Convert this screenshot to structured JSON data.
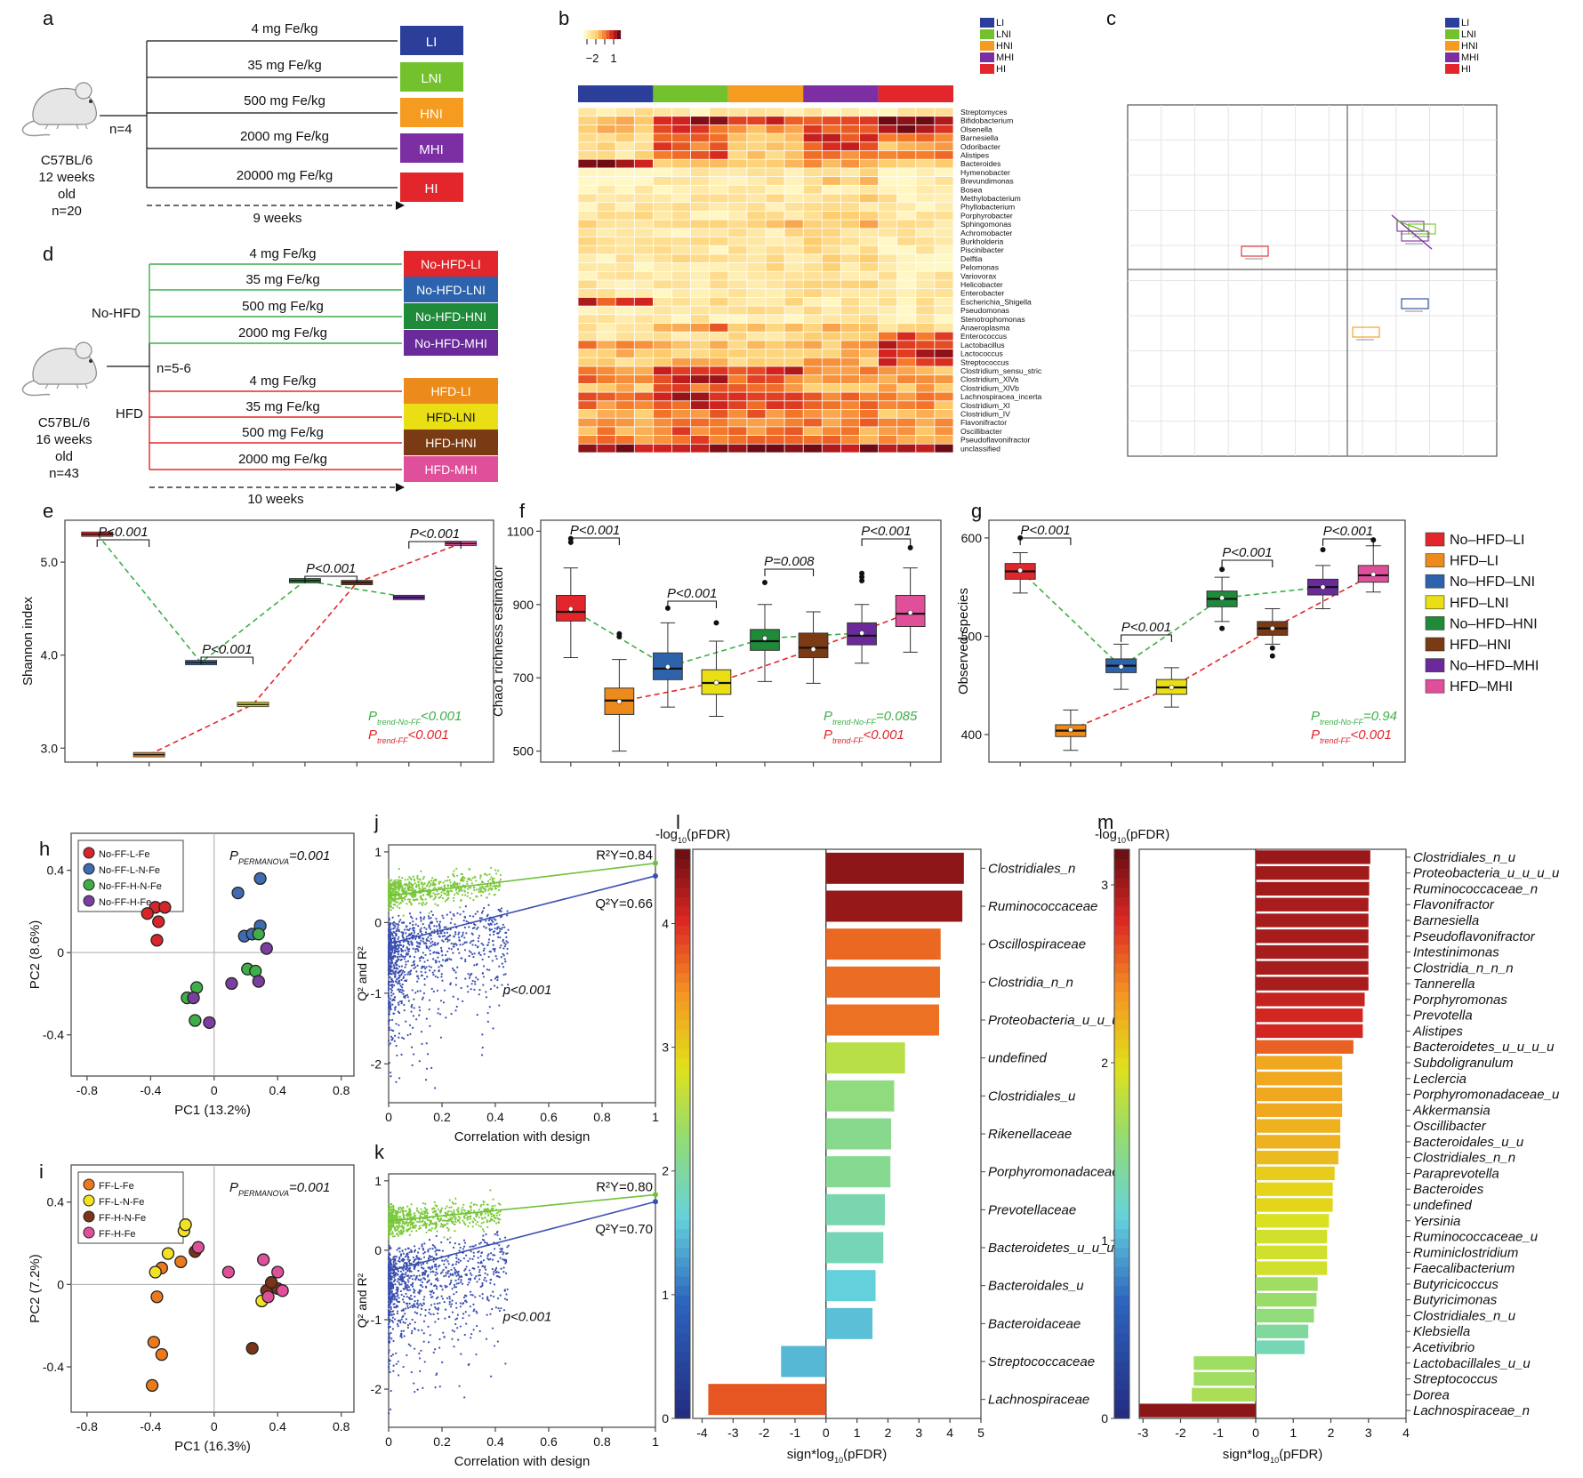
{
  "panel_a": {
    "letter": "a",
    "mouse": [
      "C57BL/6",
      "12 weeks",
      "old",
      "n=20"
    ],
    "n_per_group": "n=4",
    "doses": [
      "4 mg Fe/kg",
      "35 mg Fe/kg",
      "500 mg Fe/kg",
      "2000 mg Fe/kg",
      "20000 mg Fe/kg"
    ],
    "groups": [
      "LI",
      "LNI",
      "HNI",
      "MHI",
      "HI"
    ],
    "group_colors": [
      "#2b3f9a",
      "#73c22d",
      "#f49b20",
      "#7b2fa3",
      "#e2262b"
    ],
    "duration": "9 weeks"
  },
  "panel_b": {
    "letter": "b",
    "scale_labels": [
      "−2",
      "1"
    ],
    "legend": [
      "LI",
      "LNI",
      "HNI",
      "MHI",
      "HI"
    ],
    "legend_colors": [
      "#2b3f9a",
      "#73c22d",
      "#f49b20",
      "#7b2fa3",
      "#e2262b"
    ],
    "taxa": [
      "Streptomyces",
      "Bifidobacterium",
      "Olsenella",
      "Barnesiella",
      "Odoribacter",
      "Alistipes",
      "Bacteroides",
      "Hymenobacter",
      "Brevundimonas",
      "Bosea",
      "Methylobacterium",
      "Phyllobacterium",
      "Porphyrobacter",
      "Sphingomonas",
      "Achromobacter",
      "Burkholderia",
      "Piscinibacter",
      "Delftia",
      "Pelomonas",
      "Variovorax",
      "Helicobacter",
      "Enterobacter",
      "Escherichia_Shigella",
      "Pseudomonas",
      "Stenotrophomonas",
      "Anaeroplasma",
      "Enterococcus",
      "Lactobacillus",
      "Lactococcus",
      "Streptococcus",
      "Clostridium_sensu_stric",
      "Clostridium_XlVa",
      "Clostridium_XlVb",
      "Lachnospiracea_incerta",
      "Clostridium_XI",
      "Clostridium_IV",
      "Flavonifractor",
      "Oscillibacter",
      "Pseudoflavonifractor",
      "unclassified"
    ]
  },
  "panel_c": {
    "letter": "c",
    "legend": [
      "LI",
      "LNI",
      "HNI",
      "MHI",
      "HI"
    ],
    "legend_colors": [
      "#2b3f9a",
      "#73c22d",
      "#f49b20",
      "#7b2fa3",
      "#e2262b"
    ]
  },
  "panel_d": {
    "letter": "d",
    "mouse": [
      "C57BL/6",
      "16 weeks",
      "old",
      "n=43"
    ],
    "n_per_group": "n=5-6",
    "branch_top": "No-HFD",
    "branch_bottom": "HFD",
    "doses": [
      "4 mg Fe/kg",
      "35 mg Fe/kg",
      "500 mg Fe/kg",
      "2000 mg Fe/kg",
      "4 mg Fe/kg",
      "35 mg Fe/kg",
      "500 mg Fe/kg",
      "2000 mg Fe/kg"
    ],
    "groups": [
      "No-HFD-LI",
      "No-HFD-LNI",
      "No-HFD-HNI",
      "No-HFD-MHI",
      "HFD-LI",
      "HFD-LNI",
      "HFD-HNI",
      "HFD-MHI"
    ],
    "group_colors": [
      "#e2262b",
      "#2d63ad",
      "#1e8a3a",
      "#6a2a9a",
      "#ec8b1c",
      "#eadf14",
      "#7a3a14",
      "#e0509a"
    ],
    "duration": "10 weeks"
  },
  "legend_efg": {
    "items": [
      "No–HFD–LI",
      "HFD–LI",
      "No–HFD–LNI",
      "HFD–LNI",
      "No–HFD–HNI",
      "HFD–HNI",
      "No–HFD–MHI",
      "HFD–MHI"
    ],
    "colors": [
      "#e2262b",
      "#ec8b1c",
      "#2d63ad",
      "#eadf14",
      "#1e8a3a",
      "#7a3a14",
      "#6a2a9a",
      "#e0509a"
    ]
  },
  "chart_data": [
    {
      "panel": "e",
      "type": "box",
      "ylabel": "Shannon index",
      "yticks": [
        3.0,
        4.0,
        5.0
      ],
      "ylim": [
        2.85,
        5.45
      ],
      "medians": [
        5.3,
        2.93,
        3.92,
        3.47,
        4.8,
        4.78,
        4.62,
        5.2
      ],
      "pvalues": [
        "P<0.001",
        "P<0.001",
        "P<0.001",
        "P<0.001"
      ],
      "trend_no_ff_prefix": "P",
      "trend_no_ff_sub": "trend-No-FF",
      "trend_no_ff_value": "<0.001",
      "trend_ff_prefix": "P",
      "trend_ff_sub": "trend-FF",
      "trend_ff_value": "<0.001"
    },
    {
      "panel": "f",
      "type": "box",
      "ylabel": "Chao1 richness estimator",
      "yticks": [
        500,
        700,
        900,
        1100
      ],
      "ylim": [
        470,
        1130
      ],
      "medians": [
        880,
        638,
        725,
        686,
        800,
        782,
        815,
        875
      ],
      "q1": [
        855,
        600,
        695,
        655,
        775,
        755,
        790,
        840
      ],
      "q3": [
        925,
        672,
        768,
        722,
        832,
        822,
        850,
        925
      ],
      "whisker_low": [
        755,
        500,
        620,
        595,
        690,
        685,
        740,
        770
      ],
      "whisker_high": [
        1000,
        750,
        850,
        800,
        900,
        880,
        900,
        1000
      ],
      "means": [
        888,
        635,
        730,
        687,
        808,
        778,
        822,
        878
      ],
      "outliers": [
        [
          1070,
          1080
        ],
        [
          820,
          812
        ],
        [
          890
        ],
        [
          850
        ],
        [
          960
        ],
        [],
        [
          985,
          975,
          965
        ],
        [
          1055
        ]
      ],
      "pvalues": [
        "P<0.001",
        "P<0.001",
        "P=0.008",
        "P<0.001"
      ],
      "trend_no_ff_prefix": "P",
      "trend_no_ff_sub": "trend-No-FF",
      "trend_no_ff_value": "=0.085",
      "trend_ff_prefix": "P",
      "trend_ff_sub": "trend-FF",
      "trend_ff_value": "<0.001"
    },
    {
      "panel": "g",
      "type": "box",
      "ylabel": "Observed species",
      "yticks": [
        400,
        500,
        600
      ],
      "ylim": [
        372,
        618
      ],
      "medians": [
        566,
        404,
        470,
        448,
        538,
        508,
        550,
        562
      ],
      "q1": [
        558,
        398,
        463,
        441,
        530,
        501,
        542,
        555
      ],
      "q3": [
        574,
        410,
        477,
        456,
        546,
        515,
        558,
        572
      ],
      "whisker_low": [
        544,
        384,
        446,
        428,
        515,
        492,
        528,
        545
      ],
      "whisker_high": [
        585,
        425,
        492,
        468,
        560,
        528,
        572,
        592
      ],
      "means": [
        567,
        405,
        469,
        448,
        539,
        508,
        550,
        563
      ],
      "outliers": [
        [
          600
        ],
        [],
        [],
        [],
        [
          568,
          508
        ],
        [
          488,
          480
        ],
        [
          588
        ],
        [
          598
        ]
      ],
      "pvalues": [
        "P<0.001",
        "P<0.001",
        "P<0.001",
        "P<0.001"
      ],
      "trend_no_ff_prefix": "P",
      "trend_no_ff_sub": "trend-No-FF",
      "trend_no_ff_value": "=0.94",
      "trend_ff_prefix": "P",
      "trend_ff_sub": "trend-FF",
      "trend_ff_value": "<0.001"
    },
    {
      "panel": "h",
      "type": "scatter",
      "xlabel": "PC1 (13.2%)",
      "ylabel": "PC2 (8.6%)",
      "xticks": [
        -0.8,
        -0.4,
        0,
        0.4,
        0.8
      ],
      "yticks": [
        -0.4,
        0,
        0.4
      ],
      "xlim": [
        -0.9,
        0.88
      ],
      "ylim": [
        -0.6,
        0.58
      ],
      "permanova_prefix": "P",
      "permanova_sub": "PERMANOVA",
      "permanova_value": "=0.001",
      "series": [
        {
          "name": "No-FF-L-Fe",
          "color": "#d7262b",
          "points": [
            [
              -0.37,
              0.22
            ],
            [
              -0.31,
              0.22
            ],
            [
              -0.42,
              0.19
            ],
            [
              -0.35,
              0.15
            ],
            [
              -0.36,
              0.06
            ]
          ]
        },
        {
          "name": "No-FF-L-N-Fe",
          "color": "#3f6bb0",
          "points": [
            [
              0.15,
              0.29
            ],
            [
              0.29,
              0.36
            ],
            [
              0.19,
              0.08
            ],
            [
              0.29,
              0.13
            ],
            [
              0.24,
              0.09
            ]
          ]
        },
        {
          "name": "No-FF-H-N-Fe",
          "color": "#3fae49",
          "points": [
            [
              -0.11,
              -0.17
            ],
            [
              -0.17,
              -0.22
            ],
            [
              0.21,
              -0.08
            ],
            [
              0.28,
              0.09
            ],
            [
              0.26,
              -0.09
            ],
            [
              -0.12,
              -0.33
            ]
          ]
        },
        {
          "name": "No-FF-H-Fe",
          "color": "#7a3ea0",
          "points": [
            [
              -0.03,
              -0.34
            ],
            [
              0.33,
              0.02
            ],
            [
              0.28,
              -0.14
            ],
            [
              0.11,
              -0.15
            ],
            [
              -0.13,
              -0.22
            ]
          ]
        }
      ]
    },
    {
      "panel": "i",
      "type": "scatter",
      "xlabel": "PC1 (16.3%)",
      "ylabel": "PC2 (7.2%)",
      "xticks": [
        -0.8,
        -0.4,
        0,
        0.4,
        0.8
      ],
      "yticks": [
        -0.4,
        0,
        0.4
      ],
      "xlim": [
        -0.9,
        0.88
      ],
      "ylim": [
        -0.62,
        0.58
      ],
      "permanova_prefix": "P",
      "permanova_sub": "PERMANOVA",
      "permanova_value": "=0.001",
      "series": [
        {
          "name": "FF-L-Fe",
          "color": "#ec7a1d",
          "points": [
            [
              -0.33,
              0.08
            ],
            [
              -0.21,
              0.11
            ],
            [
              -0.36,
              -0.06
            ],
            [
              -0.38,
              -0.28
            ],
            [
              -0.33,
              -0.34
            ],
            [
              -0.39,
              -0.49
            ]
          ]
        },
        {
          "name": "FF-L-N-Fe",
          "color": "#f3e222",
          "points": [
            [
              -0.29,
              0.15
            ],
            [
              -0.19,
              0.26
            ],
            [
              -0.18,
              0.29
            ],
            [
              -0.37,
              0.06
            ],
            [
              0.3,
              -0.08
            ]
          ]
        },
        {
          "name": "FF-H-N-Fe",
          "color": "#7a3417",
          "points": [
            [
              -0.12,
              0.16
            ],
            [
              0.33,
              -0.03
            ],
            [
              0.4,
              -0.02
            ],
            [
              0.24,
              -0.31
            ],
            [
              0.36,
              0.01
            ]
          ]
        },
        {
          "name": "FF-H-Fe",
          "color": "#e0509a",
          "points": [
            [
              -0.1,
              0.18
            ],
            [
              0.09,
              0.06
            ],
            [
              0.31,
              0.12
            ],
            [
              0.4,
              0.06
            ],
            [
              0.43,
              -0.03
            ],
            [
              0.34,
              -0.06
            ]
          ]
        }
      ]
    },
    {
      "panel": "j",
      "type": "scatter",
      "xlabel": "Correlation with design",
      "ylabel": "Q² and R²",
      "xticks": [
        0,
        0.2,
        0.4,
        0.6,
        0.8,
        1
      ],
      "yticks": [
        -2,
        -1,
        0,
        1
      ],
      "xlim": [
        0,
        1
      ],
      "ylim": [
        -2.55,
        1.1
      ],
      "r2_label": "R²Y=0.84",
      "q2_label": "Q²Y=0.66",
      "r2_line": [
        [
          0,
          0.38
        ],
        [
          1,
          0.84
        ]
      ],
      "q2_line": [
        [
          0,
          -0.3
        ],
        [
          1,
          0.66
        ]
      ],
      "p_label": "p<0.001"
    },
    {
      "panel": "k",
      "type": "scatter",
      "xlabel": "Correlation with design",
      "ylabel": "Q² and R²",
      "xticks": [
        0,
        0.2,
        0.4,
        0.6,
        0.8,
        1
      ],
      "yticks": [
        -2,
        -1,
        0,
        1
      ],
      "xlim": [
        0,
        1
      ],
      "ylim": [
        -2.55,
        1.1
      ],
      "r2_label": "R²Y=0.80",
      "q2_label": "Q²Y=0.70",
      "r2_line": [
        [
          0,
          0.42
        ],
        [
          1,
          0.8
        ]
      ],
      "q2_line": [
        [
          0,
          -0.3
        ],
        [
          1,
          0.7
        ]
      ],
      "p_label": "p<0.001"
    },
    {
      "panel": "l",
      "type": "bar",
      "orientation": "horizontal",
      "xlabel_prefix": "sign*log",
      "xlabel_sub": "10",
      "xlabel_suffix": "(pFDR)",
      "colorbar_prefix": "-log",
      "colorbar_sub": "10",
      "colorbar_suffix": "(pFDR)",
      "colorbar_ticks": [
        0,
        1,
        2,
        3,
        4
      ],
      "colorbar_max": 4.6,
      "xticks": [
        -4,
        -3,
        -2,
        -1,
        0,
        1,
        2,
        3,
        4,
        5
      ],
      "xlim": [
        -4.3,
        5
      ],
      "categories": [
        "Clostridiales_n",
        "Ruminococcaceae",
        "Oscillospiraceae",
        "Clostridia_n_n",
        "Proteobacteria_u_u_u",
        "undefined",
        "Clostridiales_u",
        "Rikenellaceae",
        "Porphyromonadaceae",
        "Prevotellaceae",
        "Bacteroidetes_u_u_u",
        "Bacteroidales_u",
        "Bacteroidaceae",
        "Streptococcaceae",
        "Lachnospiraceae"
      ],
      "values": [
        4.45,
        4.4,
        3.7,
        3.68,
        3.65,
        2.55,
        2.2,
        2.1,
        2.08,
        1.9,
        1.85,
        1.6,
        1.5,
        -1.45,
        -3.8
      ]
    },
    {
      "panel": "m",
      "type": "bar",
      "orientation": "horizontal",
      "xlabel_prefix": "sign*log",
      "xlabel_sub": "10",
      "xlabel_suffix": "(pFDR)",
      "colorbar_prefix": "-log",
      "colorbar_sub": "10",
      "colorbar_suffix": "(pFDR)",
      "colorbar_ticks": [
        0,
        1,
        2,
        3
      ],
      "colorbar_max": 3.2,
      "xticks": [
        -3,
        -2,
        -1,
        0,
        1,
        2,
        3,
        4
      ],
      "xlim": [
        -3.1,
        4
      ],
      "categories": [
        "Clostridiales_n_u",
        "Proteobacteria_u_u_u_u",
        "Ruminococcaceae_n",
        "Flavonifractor",
        "Barnesiella",
        "Pseudoflavonifractor",
        "Intestinimonas",
        "Clostridia_n_n_n",
        "Tannerella",
        "Porphyromonas",
        "Prevotella",
        "Alistipes",
        "Bacteroidetes_u_u_u_u",
        "Subdoligranulum",
        "Leclercia",
        "Porphyromonadaceae_u",
        "Akkermansia",
        "Oscillibacter",
        "Bacteroidales_u_u",
        "Clostridiales_n_n",
        "Paraprevotella",
        "Bacteroides",
        "undefined",
        "Yersinia",
        "Ruminococcaceae_u",
        "Ruminiclostridium",
        "Faecalibacterium",
        "Butyricicoccus",
        "Butyricimonas",
        "Clostridiales_n_u",
        "Klebsiella",
        "Acetivibrio",
        "Lactobacillales_u_u",
        "Streptococcus",
        "Dorea",
        "Lachnospiraceae_n"
      ],
      "values": [
        3.05,
        3.02,
        3.02,
        3.0,
        3.0,
        3.0,
        3.0,
        3.0,
        3.0,
        2.9,
        2.85,
        2.85,
        2.6,
        2.3,
        2.3,
        2.3,
        2.3,
        2.25,
        2.25,
        2.2,
        2.1,
        2.05,
        2.05,
        1.95,
        1.9,
        1.9,
        1.9,
        1.65,
        1.62,
        1.55,
        1.4,
        1.3,
        -1.65,
        -1.65,
        -1.7,
        -3.1
      ]
    }
  ]
}
